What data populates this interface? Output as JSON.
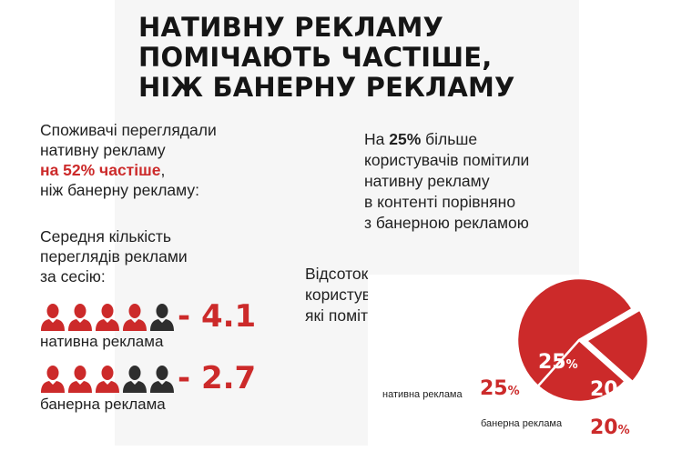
{
  "colors": {
    "accent": "#cc2a2a",
    "dark": "#2e2e2e",
    "text": "#222222"
  },
  "title": {
    "line1": "НАТИВНУ РЕКЛАМУ",
    "line2": "ПОМІЧАЮТЬ ЧАСТІШЕ,",
    "line3": "НІЖ БАНЕРНУ РЕКЛАМУ"
  },
  "intro": {
    "line1": "Споживачі переглядали",
    "line2": "нативну рекламу",
    "highlight": "на 52% частіше",
    "comma": ",",
    "line4": "ніж банерну рекламу:"
  },
  "avg": {
    "line1": "Середня кількість",
    "line2": "переглядів реклами",
    "line3": "за сесію:"
  },
  "native_views": {
    "value_text": "- 4.1",
    "caption": "нативна реклама",
    "filled": 4,
    "total": 5,
    "icon": "person-icon"
  },
  "banner_views": {
    "value_text": "- 2.7",
    "caption": "банерна реклама",
    "filled": 3,
    "total": 5,
    "icon": "person-icon"
  },
  "right_stat": {
    "prefix": "На ",
    "highlight": "25%",
    "suffix": " більше",
    "line2": "користувачів помітили",
    "line3": "нативну рекламу",
    "line4": "в контенті порівняно",
    "line5": "з банерною рекламою"
  },
  "share": {
    "line1": "Відсоток",
    "line2": "користувачів,",
    "line3": "які помітили рекламу:"
  },
  "chart_data": {
    "type": "pie",
    "slices": [
      {
        "label": "нативна реклама",
        "value": 25,
        "value_text": "25",
        "unit": "%",
        "color": "#cc2a2a"
      },
      {
        "label": "банерна реклама",
        "value": 20,
        "value_text": "20",
        "unit": "%",
        "color": "#cc2a2a"
      },
      {
        "label": "",
        "value": 55,
        "color": "#cc2a2a"
      }
    ]
  }
}
